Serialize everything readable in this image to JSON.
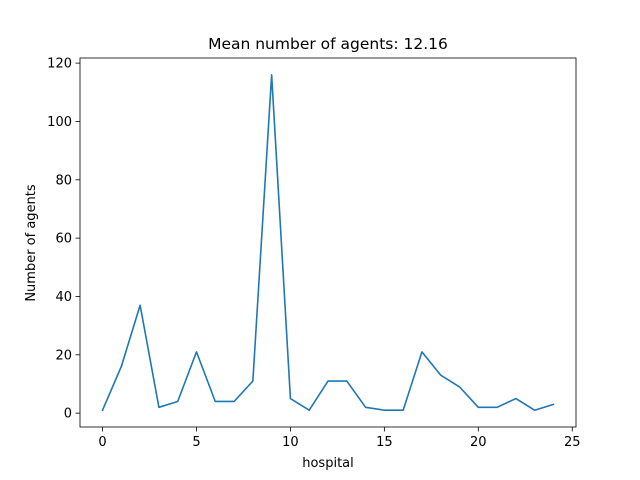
{
  "chart_data": {
    "type": "line",
    "title": "Mean number of agents: 12.16",
    "xlabel": "hospital",
    "ylabel": "Number of agents",
    "xlim": [
      -1.2,
      25.2
    ],
    "ylim": [
      -4.75,
      121.75
    ],
    "xticks": [
      0,
      5,
      10,
      15,
      20,
      25
    ],
    "yticks": [
      0,
      20,
      40,
      60,
      80,
      100,
      120
    ],
    "grid": false,
    "color": "#1f77b4",
    "x": [
      0,
      1,
      2,
      3,
      4,
      5,
      6,
      7,
      8,
      9,
      10,
      11,
      12,
      13,
      14,
      15,
      16,
      17,
      18,
      19,
      20,
      21,
      22,
      23,
      24
    ],
    "values": [
      1,
      16,
      37,
      2,
      4,
      21,
      4,
      4,
      11,
      116,
      5,
      1,
      11,
      11,
      2,
      1,
      1,
      21,
      13,
      9,
      2,
      2,
      5,
      1,
      3
    ]
  }
}
